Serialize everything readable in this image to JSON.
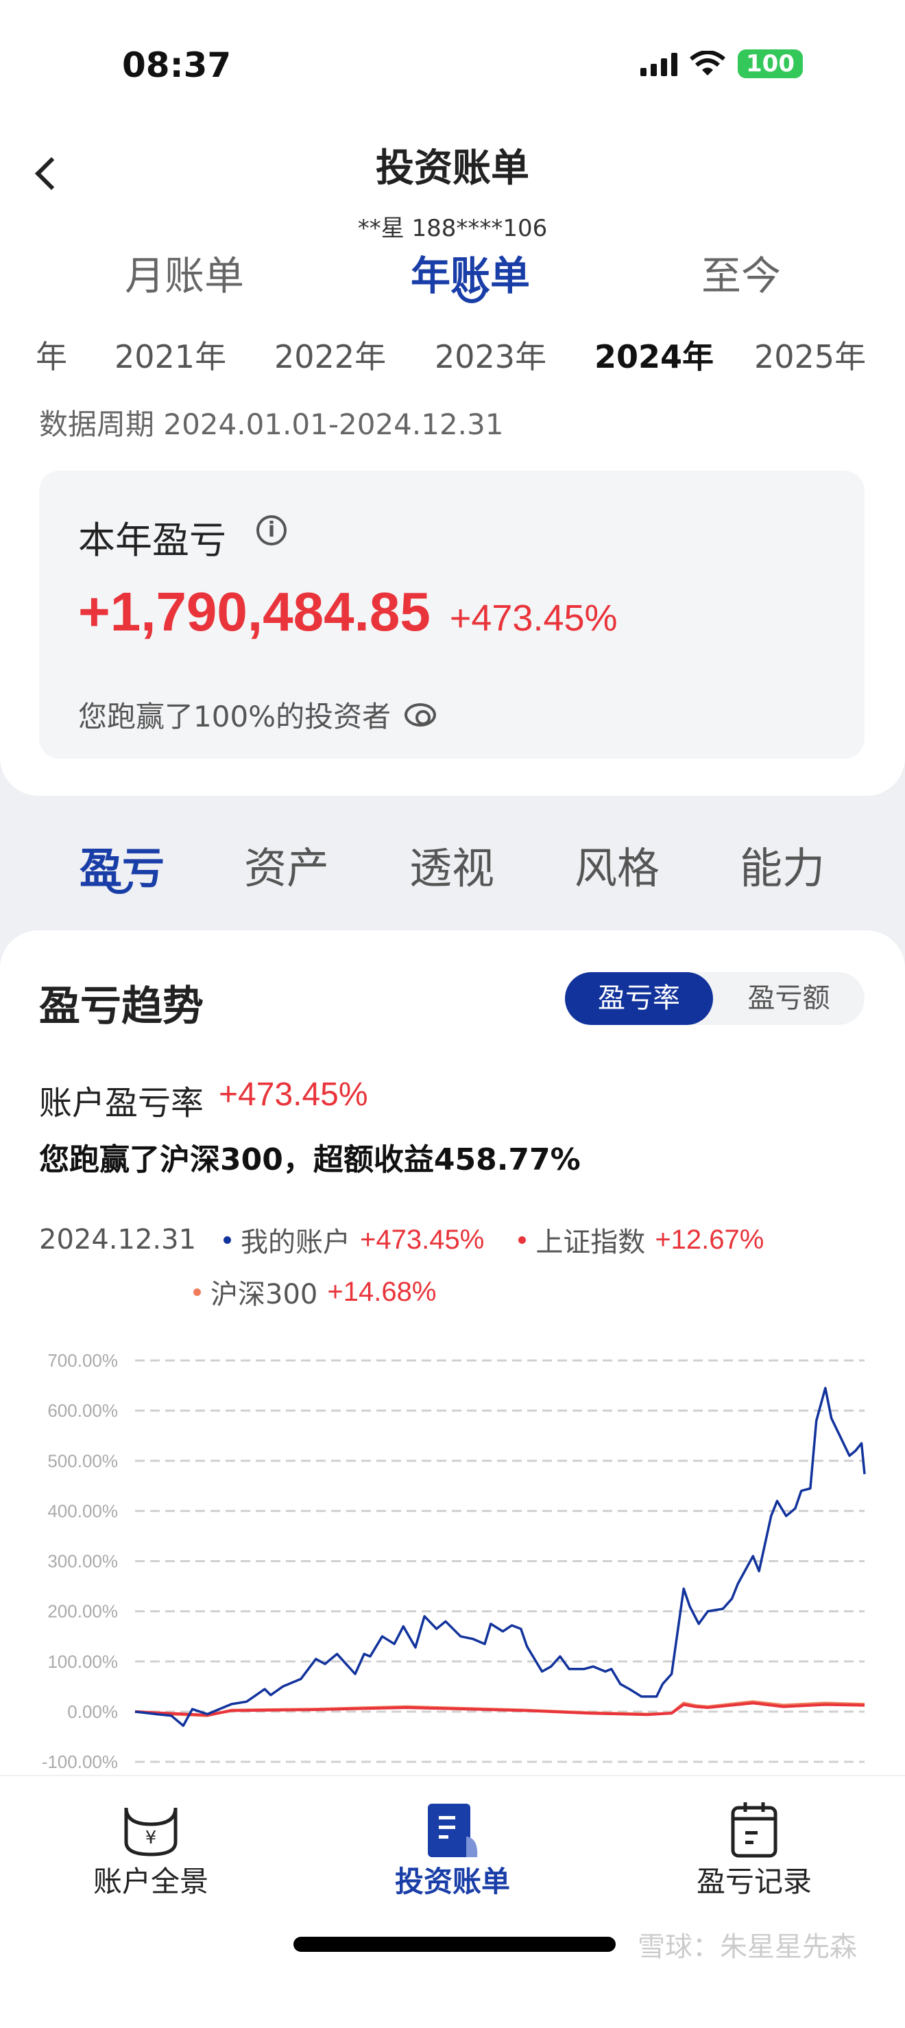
{
  "status_bar": {
    "time": "08:37",
    "battery": "100"
  },
  "header": {
    "title": "投资账单",
    "account": "**星 188****106"
  },
  "period_tabs": [
    {
      "label": "月账单"
    },
    {
      "label": "年账单",
      "active": true
    },
    {
      "label": "至今"
    }
  ],
  "years": [
    {
      "label": "年"
    },
    {
      "label": "2021年"
    },
    {
      "label": "2022年"
    },
    {
      "label": "2023年"
    },
    {
      "label": "2024年",
      "active": true
    },
    {
      "label": "2025年"
    }
  ],
  "data_period": "数据周期 2024.01.01-2024.12.31",
  "summary": {
    "title": "本年盈亏",
    "pnl": "+1,790,484.85",
    "rate": "+473.45%",
    "beat_text": "您跑赢了100%的投资者"
  },
  "section_tabs": [
    {
      "label": "盈亏",
      "active": true
    },
    {
      "label": "资产"
    },
    {
      "label": "透视"
    },
    {
      "label": "风格"
    },
    {
      "label": "能力"
    }
  ],
  "trend": {
    "title": "盈亏趋势",
    "toggle": [
      "盈亏率",
      "盈亏额"
    ],
    "account_rate_label": "账户盈亏率",
    "account_rate": "+473.45%",
    "excess_text": "您跑赢了沪深300，超额收益458.77%",
    "legend_date": "2024.12.31",
    "legend": [
      {
        "name": "我的账户",
        "value": "+473.45%",
        "color": "#12339c"
      },
      {
        "name": "上证指数",
        "value": "+12.67%",
        "color": "#e8343a"
      },
      {
        "name": "沪深300",
        "value": "+14.68%",
        "color": "#ef7b5a"
      }
    ]
  },
  "chart_data": {
    "type": "line",
    "ylim": [
      -100,
      700
    ],
    "y_ticks": [
      "700.00%",
      "600.00%",
      "500.00%",
      "400.00%",
      "300.00%",
      "200.00%",
      "100.00%",
      "0.00%",
      "-100.00%"
    ],
    "y_tick_values": [
      700,
      600,
      500,
      400,
      300,
      200,
      100,
      0,
      -100
    ],
    "grid": true,
    "x_unit": "trading day index",
    "series": [
      {
        "name": "我的账户",
        "color": "#12339c",
        "points": [
          [
            0,
            0
          ],
          [
            7,
            -5
          ],
          [
            12,
            -8
          ],
          [
            16,
            -28
          ],
          [
            19,
            5
          ],
          [
            24,
            -5
          ],
          [
            32,
            15
          ],
          [
            37,
            20
          ],
          [
            43,
            45
          ],
          [
            45,
            33
          ],
          [
            49,
            50
          ],
          [
            55,
            65
          ],
          [
            60,
            105
          ],
          [
            63,
            95
          ],
          [
            67,
            115
          ],
          [
            70,
            95
          ],
          [
            73,
            75
          ],
          [
            76,
            115
          ],
          [
            78,
            110
          ],
          [
            82,
            150
          ],
          [
            86,
            135
          ],
          [
            89,
            170
          ],
          [
            93,
            128
          ],
          [
            96,
            190
          ],
          [
            100,
            165
          ],
          [
            103,
            180
          ],
          [
            108,
            150
          ],
          [
            112,
            145
          ],
          [
            116,
            135
          ],
          [
            118,
            175
          ],
          [
            122,
            160
          ],
          [
            125,
            172
          ],
          [
            128,
            165
          ],
          [
            130,
            130
          ],
          [
            135,
            80
          ],
          [
            138,
            90
          ],
          [
            141,
            110
          ],
          [
            144,
            85
          ],
          [
            149,
            85
          ],
          [
            152,
            90
          ],
          [
            156,
            80
          ],
          [
            158,
            85
          ],
          [
            161,
            55
          ],
          [
            164,
            45
          ],
          [
            168,
            30
          ],
          [
            173,
            30
          ],
          [
            175,
            55
          ],
          [
            178,
            75
          ],
          [
            182,
            245
          ],
          [
            184,
            210
          ],
          [
            187,
            175
          ],
          [
            190,
            200
          ],
          [
            195,
            205
          ],
          [
            198,
            225
          ],
          [
            200,
            255
          ],
          [
            205,
            310
          ],
          [
            207,
            280
          ],
          [
            211,
            390
          ],
          [
            213,
            420
          ],
          [
            216,
            390
          ],
          [
            219,
            405
          ],
          [
            221,
            440
          ],
          [
            224,
            445
          ],
          [
            226,
            580
          ],
          [
            229,
            645
          ],
          [
            231,
            585
          ],
          [
            233,
            560
          ],
          [
            237,
            510
          ],
          [
            239,
            520
          ],
          [
            241,
            535
          ],
          [
            242,
            473.45
          ]
        ]
      },
      {
        "name": "上证指数",
        "color": "#e8343a",
        "points": [
          [
            0,
            0
          ],
          [
            24,
            -7
          ],
          [
            32,
            2
          ],
          [
            60,
            4
          ],
          [
            90,
            8
          ],
          [
            130,
            2
          ],
          [
            150,
            -3
          ],
          [
            170,
            -6
          ],
          [
            178,
            -3
          ],
          [
            182,
            14
          ],
          [
            186,
            10
          ],
          [
            190,
            8
          ],
          [
            205,
            17
          ],
          [
            215,
            10
          ],
          [
            229,
            14
          ],
          [
            242,
            12.67
          ]
        ]
      },
      {
        "name": "沪深300",
        "color": "#ef7b5a",
        "points": [
          [
            0,
            0
          ],
          [
            12,
            -5
          ],
          [
            24,
            -8
          ],
          [
            32,
            3
          ],
          [
            60,
            5
          ],
          [
            90,
            10
          ],
          [
            130,
            3
          ],
          [
            150,
            -2
          ],
          [
            170,
            -5
          ],
          [
            178,
            -3
          ],
          [
            182,
            17
          ],
          [
            186,
            12
          ],
          [
            190,
            10
          ],
          [
            205,
            20
          ],
          [
            215,
            13
          ],
          [
            229,
            17
          ],
          [
            242,
            14.68
          ]
        ]
      }
    ]
  },
  "bottom_nav": [
    {
      "label": "账户全景",
      "icon": "yuan-pouch-icon"
    },
    {
      "label": "投资账单",
      "icon": "bill-icon",
      "active": true
    },
    {
      "label": "盈亏记录",
      "icon": "calendar-record-icon"
    }
  ],
  "watermark": "雪球：朱星星先森"
}
